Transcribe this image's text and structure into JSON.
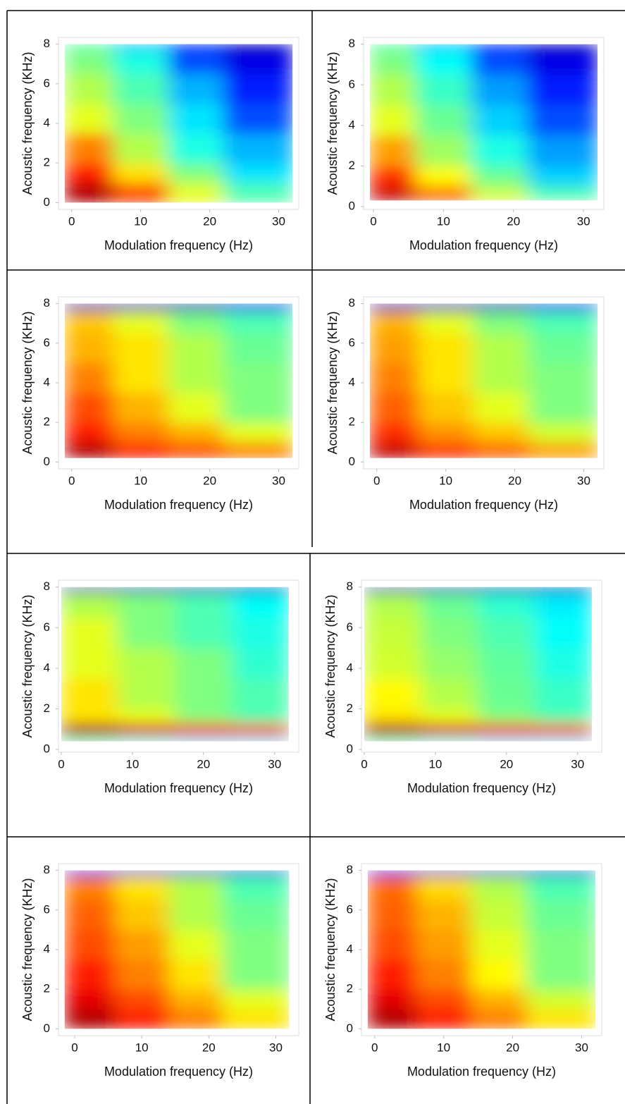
{
  "chart_data": [
    {
      "type": "heatmap",
      "colormap": "jet",
      "xlabel": "Modulation frequency (Hz)",
      "ylabel": "Acoustic frequency (KHz)",
      "xlim": [
        -1.5,
        32.5
      ],
      "ylim": [
        -0.2,
        8.2
      ],
      "xticks": [
        0,
        10,
        20,
        30
      ],
      "yticks": [
        0,
        2,
        4,
        6,
        8
      ],
      "xbins": [
        -1,
        6,
        14,
        22,
        32
      ],
      "ybins": [
        0,
        1,
        2,
        3.5,
        5,
        6.5,
        7.7,
        8
      ],
      "z": [
        [
          0.95,
          0.8,
          0.6,
          0.45
        ],
        [
          0.85,
          0.65,
          0.5,
          0.35
        ],
        [
          0.75,
          0.55,
          0.4,
          0.3
        ],
        [
          0.6,
          0.5,
          0.35,
          0.2
        ],
        [
          0.55,
          0.45,
          0.3,
          0.15
        ],
        [
          0.5,
          0.4,
          0.2,
          0.1
        ],
        [
          0.45,
          0.3,
          0.15,
          0.05
        ]
      ]
    },
    {
      "type": "heatmap",
      "colormap": "jet",
      "xlabel": "Modulation frequency (Hz)",
      "ylabel": "Acoustic frequency (KHz)",
      "xlim": [
        -1,
        32.5
      ],
      "ylim": [
        0,
        8.2
      ],
      "xticks": [
        0,
        10,
        20,
        30
      ],
      "yticks": [
        0,
        2,
        4,
        6,
        8
      ],
      "xbins": [
        -0.5,
        6,
        14,
        22,
        32
      ],
      "ybins": [
        0.3,
        1,
        2,
        3.5,
        5,
        6.5,
        7.7,
        8
      ],
      "z": [
        [
          0.93,
          0.78,
          0.58,
          0.45
        ],
        [
          0.83,
          0.63,
          0.48,
          0.33
        ],
        [
          0.72,
          0.53,
          0.4,
          0.28
        ],
        [
          0.6,
          0.48,
          0.33,
          0.2
        ],
        [
          0.55,
          0.43,
          0.28,
          0.15
        ],
        [
          0.5,
          0.38,
          0.2,
          0.1
        ],
        [
          0.45,
          0.3,
          0.15,
          0.05
        ]
      ]
    },
    {
      "type": "heatmap",
      "colormap": "jet",
      "xlabel": "Modulation frequency (Hz)",
      "ylabel": "Acoustic frequency (KHz)",
      "xlim": [
        -1.5,
        32.5
      ],
      "ylim": [
        -0.2,
        8.2
      ],
      "xticks": [
        0,
        10,
        20,
        30
      ],
      "yticks": [
        0,
        2,
        4,
        6,
        8
      ],
      "xbins": [
        -1,
        6,
        14,
        22,
        32
      ],
      "ybins": [
        0.2,
        1,
        2,
        3.5,
        5,
        6.5,
        7.6,
        8
      ],
      "z": [
        [
          0.95,
          0.85,
          0.8,
          0.75
        ],
        [
          0.85,
          0.75,
          0.7,
          0.6
        ],
        [
          0.8,
          0.7,
          0.6,
          0.5
        ],
        [
          0.75,
          0.65,
          0.55,
          0.5
        ],
        [
          0.7,
          0.65,
          0.55,
          0.48
        ],
        [
          0.68,
          0.6,
          0.5,
          0.45
        ],
        [
          0.05,
          0.05,
          0.05,
          0.1
        ]
      ]
    },
    {
      "type": "heatmap",
      "colormap": "jet",
      "xlabel": "Modulation frequency (Hz)",
      "ylabel": "Acoustic frequency (KHz)",
      "xlim": [
        -1.5,
        32.5
      ],
      "ylim": [
        -0.2,
        8.2
      ],
      "xticks": [
        0,
        10,
        20,
        30
      ],
      "yticks": [
        0,
        2,
        4,
        6,
        8
      ],
      "xbins": [
        -1,
        6,
        14,
        22,
        32
      ],
      "ybins": [
        0.2,
        1,
        2,
        3.5,
        5,
        6.5,
        7.6,
        8
      ],
      "z": [
        [
          0.93,
          0.83,
          0.78,
          0.72
        ],
        [
          0.83,
          0.73,
          0.68,
          0.58
        ],
        [
          0.78,
          0.68,
          0.6,
          0.5
        ],
        [
          0.75,
          0.65,
          0.55,
          0.5
        ],
        [
          0.72,
          0.65,
          0.55,
          0.48
        ],
        [
          0.7,
          0.6,
          0.5,
          0.45
        ],
        [
          0.05,
          0.05,
          0.05,
          0.1
        ]
      ]
    },
    {
      "type": "heatmap",
      "colormap": "jet",
      "xlabel": "Modulation frequency (Hz)",
      "ylabel": "Acoustic frequency (KHz)",
      "xlim": [
        0,
        33
      ],
      "ylim": [
        0,
        8.2
      ],
      "xticks": [
        0,
        10,
        20,
        30
      ],
      "yticks": [
        0,
        2,
        4,
        6,
        8
      ],
      "xbins": [
        0,
        8,
        16,
        24,
        32
      ],
      "ybins": [
        0.4,
        0.7,
        1.3,
        2,
        3.5,
        5,
        6.5,
        7.7,
        8
      ],
      "z": [
        [
          0.45,
          0.4,
          0.35,
          0.35
        ],
        [
          0.95,
          0.9,
          0.85,
          0.8
        ],
        [
          0.65,
          0.6,
          0.5,
          0.45
        ],
        [
          0.65,
          0.55,
          0.5,
          0.45
        ],
        [
          0.6,
          0.55,
          0.5,
          0.42
        ],
        [
          0.6,
          0.5,
          0.45,
          0.4
        ],
        [
          0.55,
          0.5,
          0.45,
          0.38
        ],
        [
          0.05,
          0.05,
          0.05,
          0.05
        ]
      ]
    },
    {
      "type": "heatmap",
      "colormap": "jet",
      "xlabel": "Modulation frequency (Hz)",
      "ylabel": "Acoustic frequency (KHz)",
      "xlim": [
        0,
        33
      ],
      "ylim": [
        0,
        8.2
      ],
      "xticks": [
        0,
        10,
        20,
        30
      ],
      "yticks": [
        0,
        2,
        4,
        6,
        8
      ],
      "xbins": [
        0,
        8,
        16,
        24,
        32
      ],
      "ybins": [
        0.4,
        0.7,
        1.3,
        2,
        3.5,
        5,
        6.5,
        7.7,
        8
      ],
      "z": [
        [
          0.45,
          0.4,
          0.35,
          0.35
        ],
        [
          0.95,
          0.9,
          0.85,
          0.8
        ],
        [
          0.65,
          0.6,
          0.5,
          0.45
        ],
        [
          0.63,
          0.55,
          0.48,
          0.43
        ],
        [
          0.58,
          0.52,
          0.47,
          0.4
        ],
        [
          0.57,
          0.5,
          0.45,
          0.38
        ],
        [
          0.55,
          0.48,
          0.42,
          0.36
        ],
        [
          0.05,
          0.05,
          0.05,
          0.05
        ]
      ]
    },
    {
      "type": "heatmap",
      "colormap": "jet",
      "xlabel": "Modulation frequency (Hz)",
      "ylabel": "Acoustic frequency (KHz)",
      "xlim": [
        -2,
        33
      ],
      "ylim": [
        -0.2,
        8.2
      ],
      "xticks": [
        0,
        10,
        20,
        30
      ],
      "yticks": [
        0,
        2,
        4,
        6,
        8
      ],
      "xbins": [
        -1.5,
        6,
        14,
        22,
        32
      ],
      "ybins": [
        0,
        1,
        2,
        3.5,
        5,
        6.5,
        7.7,
        8
      ],
      "z": [
        [
          0.95,
          0.85,
          0.75,
          0.65
        ],
        [
          0.9,
          0.8,
          0.7,
          0.6
        ],
        [
          0.85,
          0.75,
          0.65,
          0.5
        ],
        [
          0.8,
          0.72,
          0.6,
          0.5
        ],
        [
          0.78,
          0.68,
          0.55,
          0.48
        ],
        [
          0.75,
          0.65,
          0.55,
          0.45
        ],
        [
          0.1,
          0.08,
          0.08,
          0.08
        ]
      ]
    },
    {
      "type": "heatmap",
      "colormap": "jet",
      "xlabel": "Modulation frequency (Hz)",
      "ylabel": "Acoustic frequency (KHz)",
      "xlim": [
        -1.5,
        32.5
      ],
      "ylim": [
        -0.2,
        8.2
      ],
      "xticks": [
        0,
        10,
        20,
        30
      ],
      "yticks": [
        0,
        2,
        4,
        6,
        8
      ],
      "xbins": [
        -1,
        6,
        14,
        22,
        32
      ],
      "ybins": [
        0,
        1,
        2,
        3.5,
        5,
        6.5,
        7.7,
        8
      ],
      "z": [
        [
          0.95,
          0.85,
          0.75,
          0.65
        ],
        [
          0.9,
          0.8,
          0.7,
          0.58
        ],
        [
          0.85,
          0.75,
          0.63,
          0.5
        ],
        [
          0.8,
          0.72,
          0.6,
          0.5
        ],
        [
          0.78,
          0.7,
          0.57,
          0.48
        ],
        [
          0.77,
          0.66,
          0.55,
          0.45
        ],
        [
          0.1,
          0.08,
          0.08,
          0.08
        ]
      ]
    }
  ]
}
